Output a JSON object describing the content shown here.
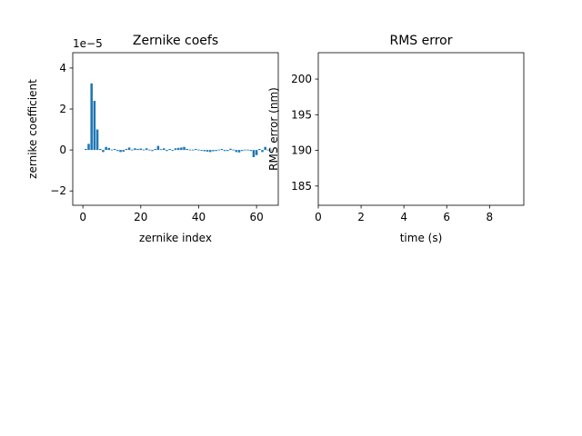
{
  "chart_data": [
    {
      "type": "bar",
      "title": "Zernike coefs",
      "xlabel": "zernike index",
      "ylabel": "zernike coefficient",
      "offset_text": "1e−5",
      "xlim": [
        -3.5,
        67.5
      ],
      "ylim": [
        -2.7,
        4.75
      ],
      "x_ticks": [
        0,
        20,
        40,
        60
      ],
      "x_tick_labels": [
        "0",
        "20",
        "40",
        "60"
      ],
      "y_ticks": [
        -2,
        0,
        2,
        4
      ],
      "y_tick_labels": [
        "−2",
        "0",
        "2",
        "4"
      ],
      "color": "#1f77b4",
      "grid": false,
      "x": [
        1,
        2,
        3,
        4,
        5,
        6,
        7,
        8,
        9,
        10,
        11,
        12,
        13,
        14,
        15,
        16,
        17,
        18,
        19,
        20,
        21,
        22,
        23,
        24,
        25,
        26,
        27,
        28,
        29,
        30,
        31,
        32,
        33,
        34,
        35,
        36,
        37,
        38,
        39,
        40,
        41,
        42,
        43,
        44,
        45,
        46,
        47,
        48,
        49,
        50,
        51,
        52,
        53,
        54,
        55,
        56,
        57,
        58,
        59,
        60,
        61,
        62,
        63,
        64,
        65
      ],
      "values": [
        0.05,
        0.3,
        3.25,
        2.4,
        1.0,
        0.05,
        -0.1,
        0.15,
        0.1,
        0.03,
        0.05,
        -0.05,
        -0.1,
        -0.08,
        0.05,
        0.12,
        0.02,
        0.08,
        0.05,
        0.07,
        0.03,
        0.08,
        0.03,
        -0.05,
        0.05,
        0.2,
        0.04,
        0.08,
        -0.05,
        0.05,
        -0.04,
        0.08,
        0.1,
        0.12,
        0.15,
        0.05,
        0.02,
        -0.03,
        0.05,
        0.02,
        -0.04,
        -0.06,
        -0.08,
        -0.1,
        -0.06,
        -0.05,
        0.03,
        0.05,
        -0.05,
        -0.05,
        0.06,
        -0.03,
        -0.1,
        -0.12,
        -0.05,
        -0.03,
        0.02,
        -0.05,
        -0.35,
        -0.25,
        0.05,
        -0.1,
        0.15,
        0.0,
        0.0
      ]
    },
    {
      "type": "line",
      "title": "RMS error",
      "xlabel": "time (s)",
      "ylabel": "RMS error (nm)",
      "xlim": [
        0,
        9.6
      ],
      "ylim": [
        182.3,
        203.7
      ],
      "x_ticks": [
        0,
        2,
        4,
        6,
        8
      ],
      "x_tick_labels": [
        "0",
        "2",
        "4",
        "6",
        "8"
      ],
      "y_ticks": [
        185,
        190,
        195,
        200
      ],
      "y_tick_labels": [
        "185",
        "190",
        "195",
        "200"
      ],
      "grid": false,
      "series": []
    }
  ]
}
